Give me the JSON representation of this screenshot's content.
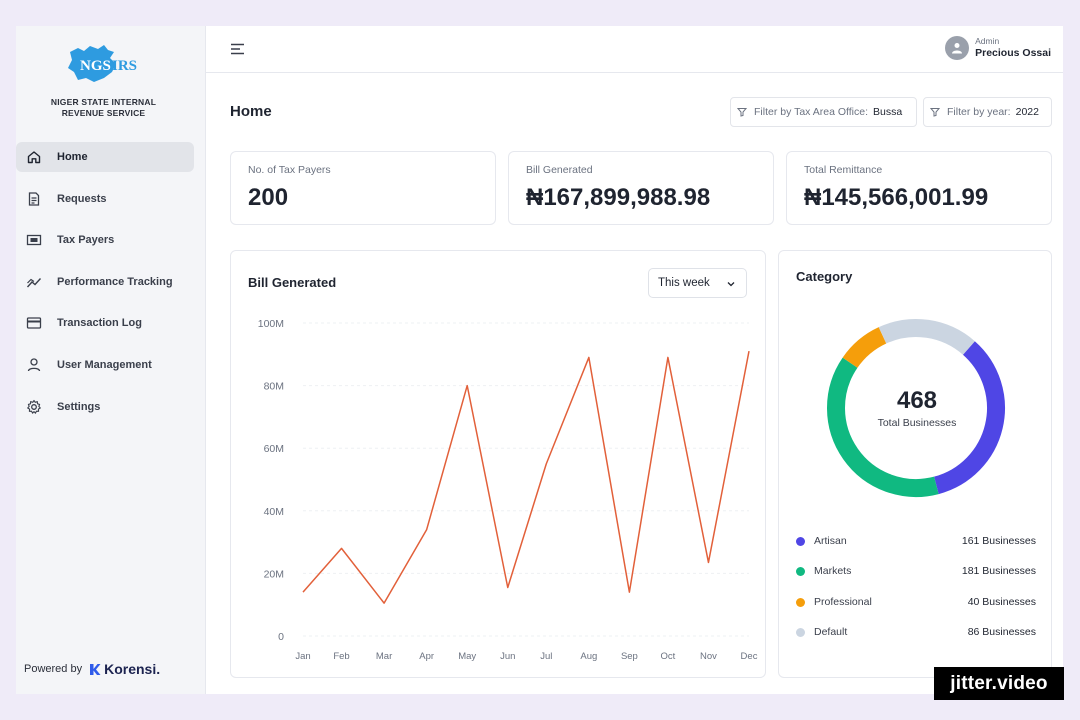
{
  "org": {
    "name_line1": "NIGER STATE INTERNAL",
    "name_line2": "REVENUE SERVICE",
    "logo_text": "NGSIRS"
  },
  "sidebar": {
    "items": [
      {
        "label": "Home",
        "icon": "home-icon",
        "active": true
      },
      {
        "label": "Requests",
        "icon": "document-icon"
      },
      {
        "label": "Tax Payers",
        "icon": "money-icon"
      },
      {
        "label": "Performance Tracking",
        "icon": "trend-icon"
      },
      {
        "label": "Transaction Log",
        "icon": "card-icon"
      },
      {
        "label": "User Management",
        "icon": "user-icon"
      },
      {
        "label": "Settings",
        "icon": "gear-icon"
      }
    ],
    "powered_by": "Powered by",
    "brand": "Korensi."
  },
  "topbar": {
    "user_role": "Admin",
    "user_name": "Precious Ossai"
  },
  "page": {
    "title": "Home",
    "filter_office_label": "Filter by Tax Area Office:",
    "filter_office_value": "Bussa",
    "filter_year_label": "Filter by year:",
    "filter_year_value": "2022"
  },
  "stats": [
    {
      "label": "No. of Tax Payers",
      "value": "200"
    },
    {
      "label": "Bill Generated",
      "value": "₦167,899,988.98"
    },
    {
      "label": "Total Remittance",
      "value": "₦145,566,001.99"
    }
  ],
  "bill_card": {
    "title": "Bill Generated",
    "range": "This week"
  },
  "category_card": {
    "title": "Category",
    "total": "468",
    "total_label": "Total Businesses",
    "legend": [
      {
        "name": "Artisan",
        "count": "161 Businesses",
        "value": 161,
        "color": "#4f46e5"
      },
      {
        "name": "Markets",
        "count": "181 Businesses",
        "value": 181,
        "color": "#10b981"
      },
      {
        "name": "Professional",
        "count": "40 Businesses",
        "value": 40,
        "color": "#f59e0b"
      },
      {
        "name": "Default",
        "count": "86 Businesses",
        "value": 86,
        "color": "#cbd5e1"
      }
    ]
  },
  "chart_data": {
    "type": "line",
    "title": "Bill Generated",
    "categories": [
      "Jan",
      "Feb",
      "Mar",
      "Apr",
      "May",
      "Jun",
      "Jul",
      "Aug",
      "Sep",
      "Oct",
      "Nov",
      "Dec"
    ],
    "x": [
      0,
      1,
      2,
      3,
      4,
      5,
      6,
      7,
      8,
      9,
      10,
      11
    ],
    "values": [
      14,
      28,
      10.5,
      34,
      80,
      15.5,
      55,
      89,
      14,
      89,
      23.5,
      91
    ],
    "x_positions": [
      0,
      0.95,
      2,
      3.05,
      4.05,
      5.05,
      6,
      7.05,
      8.05,
      9,
      10,
      11
    ],
    "ylim": [
      0,
      100
    ],
    "yticks": [
      0,
      20,
      40,
      60,
      80,
      100
    ],
    "ytick_labels": [
      "0",
      "20M",
      "40M",
      "60M",
      "80M",
      "100M"
    ],
    "series_color": "#e2603a",
    "grid": true,
    "xlabel": "",
    "ylabel": ""
  },
  "watermark": "jitter.video"
}
